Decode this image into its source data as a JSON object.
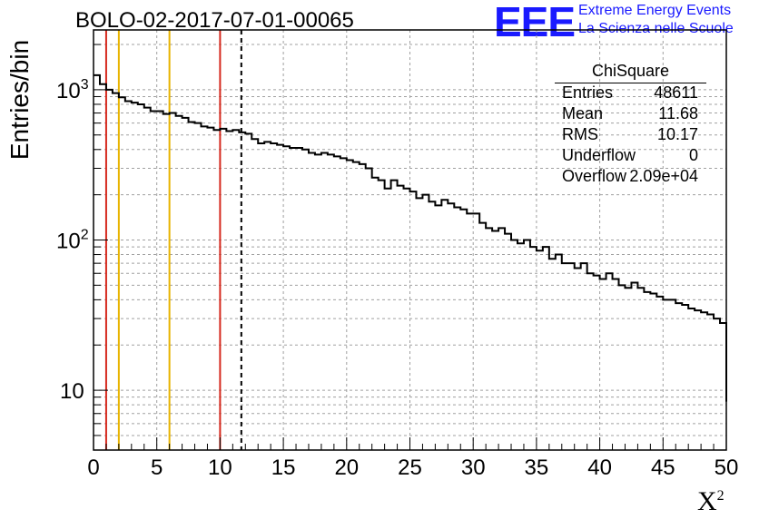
{
  "header": {
    "title": "BOLO-02-2017-07-01-00065",
    "logo_text": "EEE",
    "logo_line1": "Extreme Energy Events",
    "logo_line2": "La Scienza nelle Scuole"
  },
  "stats_box": {
    "title": "ChiSquare",
    "rows": [
      {
        "name": "Entries",
        "value": "48611"
      },
      {
        "name": "Mean",
        "value": "11.68"
      },
      {
        "name": "RMS",
        "value": "10.17"
      },
      {
        "name": "Underflow",
        "value": "0"
      },
      {
        "name": "Overflow",
        "value": "2.09e+04"
      }
    ]
  },
  "chart_data": {
    "type": "histogram",
    "title": "BOLO-02-2017-07-01-00065",
    "xlabel": "X",
    "xlabel_superscript": "2",
    "ylabel": "Entries/bin",
    "y_scale": "log",
    "xlim": [
      0,
      50
    ],
    "ylim": [
      4,
      2500
    ],
    "grid": true,
    "x_ticks": [
      "0",
      "5",
      "10",
      "15",
      "20",
      "25",
      "30",
      "35",
      "40",
      "45",
      "50"
    ],
    "y_ticks": [
      {
        "value": 10,
        "label": "10",
        "sup": ""
      },
      {
        "value": 100,
        "label": "10",
        "sup": "2"
      },
      {
        "value": 1000,
        "label": "10",
        "sup": "3"
      }
    ],
    "bin_width": 0.5,
    "bin_edges_start": 0,
    "bin_counts": [
      1250,
      1090,
      1000,
      950,
      890,
      840,
      820,
      800,
      760,
      720,
      720,
      690,
      700,
      670,
      650,
      610,
      600,
      570,
      560,
      540,
      550,
      530,
      540,
      520,
      510,
      470,
      440,
      450,
      440,
      430,
      420,
      410,
      410,
      400,
      380,
      370,
      380,
      370,
      360,
      350,
      340,
      330,
      320,
      300,
      260,
      250,
      220,
      250,
      230,
      220,
      210,
      190,
      200,
      180,
      170,
      185,
      175,
      165,
      160,
      150,
      150,
      130,
      120,
      115,
      120,
      110,
      100,
      95,
      100,
      90,
      85,
      90,
      75,
      80,
      70,
      70,
      65,
      70,
      60,
      58,
      55,
      60,
      55,
      50,
      48,
      52,
      48,
      45,
      44,
      42,
      40,
      40,
      38,
      37,
      35,
      34,
      33,
      32,
      30,
      28
    ],
    "vertical_lines": [
      {
        "x": 1,
        "color": "#d62a1e",
        "style": "solid"
      },
      {
        "x": 2,
        "color": "#e8b400",
        "style": "solid"
      },
      {
        "x": 6,
        "color": "#e8b400",
        "style": "solid"
      },
      {
        "x": 10,
        "color": "#d62a1e",
        "style": "solid"
      },
      {
        "x": 11.68,
        "color": "#000000",
        "style": "dashed"
      }
    ]
  }
}
